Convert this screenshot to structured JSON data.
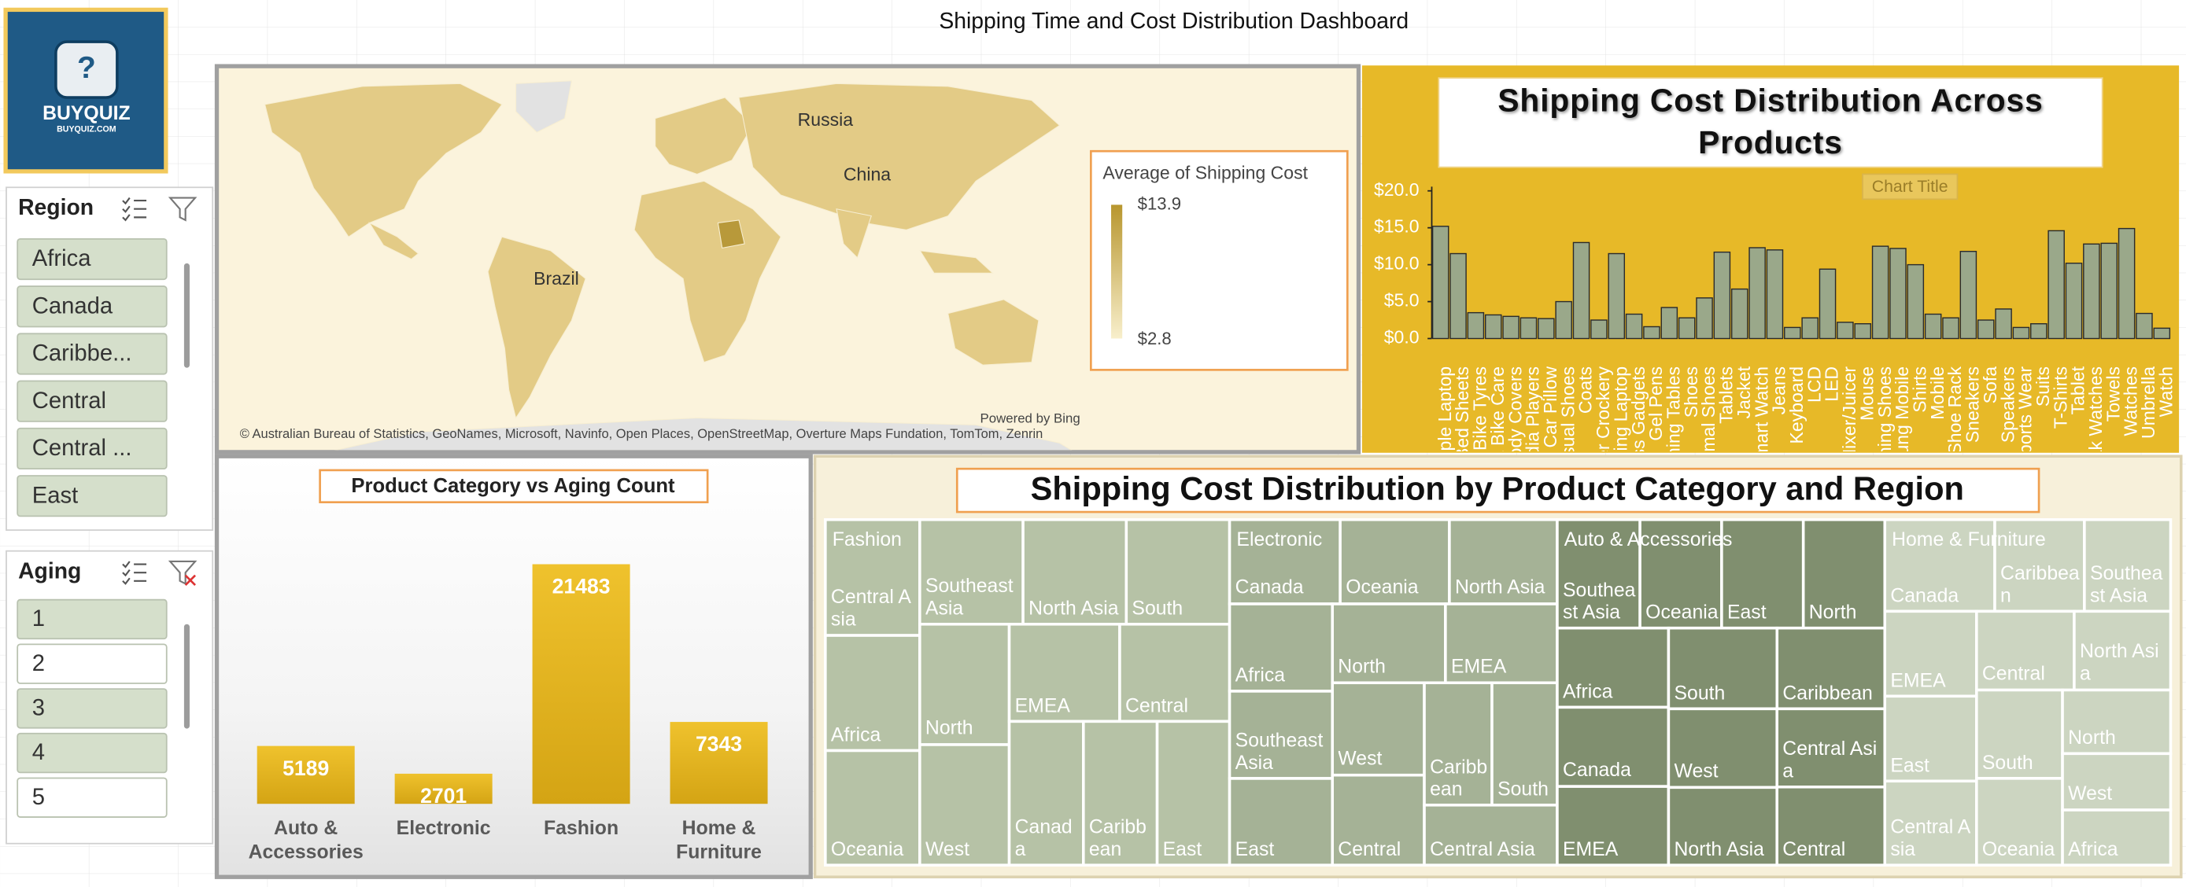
{
  "header": {
    "title": "Shipping Time and Cost Distribution Dashboard"
  },
  "logo": {
    "name": "BUYQUIZ",
    "site": "BUYQUIZ.COM"
  },
  "slicers": [
    {
      "title": "Region",
      "items": [
        "Africa",
        "Canada",
        "Caribbe...",
        "Central",
        "Central ...",
        "East"
      ],
      "selected": [
        true,
        true,
        true,
        true,
        true,
        true
      ]
    },
    {
      "title": "Aging",
      "items": [
        "1",
        "2",
        "3",
        "4",
        "5"
      ],
      "selected": [
        true,
        false,
        true,
        true,
        false
      ]
    }
  ],
  "map": {
    "labels": [
      "Russia",
      "China",
      "Brazil"
    ],
    "legend_title": "Average of Shipping Cost",
    "legend_labels": [
      "$13.9",
      "$2.8"
    ],
    "powered_by": "Powered by Bing",
    "attribution": "© Australian Bureau of Statistics, GeoNames, Microsoft, Navinfo, Open Places, OpenStreetMap, Overture Maps Fundation, TomTom, Zenrin"
  },
  "chart_data": [
    {
      "type": "bar",
      "title": "Shipping Cost Distribution Across Products",
      "annotation": "Chart Title",
      "color": "#9aa88a",
      "categories": [
        "Apple Laptop",
        "Bed Sheets",
        "Bike Tyres",
        "Car & Bike Care",
        "Car Body Covers",
        "Car Media Players",
        "Car Pillow",
        "Casual Shoes",
        "Coats",
        "Dinner Crockery",
        "Gaming Laptop",
        "Fitness Gadgets",
        "Gel Pens",
        "Dinning Tables",
        "Shoes",
        "Formal Shoes",
        "Tablets",
        "Jacket",
        "Smart Watch",
        "Jeans",
        "Keyboard",
        "LCD",
        "LED",
        "Mixer/Juicer",
        "Mouse",
        "Running Shoes",
        "Samsung Mobile",
        "Shirts",
        "Mobile",
        "Shoe Rack",
        "Sneakers",
        "Sofa",
        "Speakers",
        "Sports Wear",
        "Suits",
        "T-Shirts",
        "Tablet",
        "Titak Watches",
        "Towels",
        "Watches",
        "Umbrella",
        "Watch"
      ],
      "values": [
        15.2,
        11.5,
        3.5,
        3.2,
        3.0,
        2.8,
        2.7,
        5.0,
        13.0,
        2.5,
        11.5,
        3.3,
        1.6,
        4.2,
        2.8,
        5.5,
        11.7,
        6.7,
        12.3,
        12.0,
        1.5,
        2.8,
        9.4,
        2.2,
        2.0,
        12.5,
        12.2,
        10.0,
        3.3,
        2.8,
        11.8,
        2.5,
        4.0,
        1.5,
        2.0,
        14.6,
        10.2,
        12.8,
        12.9,
        14.9,
        3.4,
        1.4
      ],
      "ylim": [
        0,
        20
      ],
      "yticks": [
        {
          "value": 0,
          "label": "$0.0"
        },
        {
          "value": 5,
          "label": "$5.0"
        },
        {
          "value": 10,
          "label": "$10.0"
        },
        {
          "value": 15,
          "label": "$15.0"
        },
        {
          "value": 20,
          "label": "$20.0"
        }
      ]
    },
    {
      "type": "bar",
      "title": "Product Category vs Aging Count",
      "color": "#e0b420",
      "categories": [
        "Auto & Accessories",
        "Electronic",
        "Fashion",
        "Home & Furniture"
      ],
      "values": [
        5189,
        2701,
        21483,
        7343
      ]
    },
    {
      "type": "treemap",
      "title": "Shipping Cost Distribution by Product Category and Region",
      "series": [
        {
          "name": "Fashion",
          "color": "#b6c2a6",
          "categories": [
            "Central Asia",
            "Africa",
            "Oceania",
            "Southeast Asia",
            "North Asia",
            "South",
            "North",
            "West",
            "EMEA",
            "Central",
            "Canada",
            "Caribbean",
            "East"
          ],
          "values": [
            5630,
            5600,
            5570,
            5560,
            5560,
            5560,
            5550,
            5550,
            5530,
            5500,
            5490,
            5460,
            5360
          ]
        },
        {
          "name": "Electronic",
          "color": "#a5b296",
          "categories": [
            "Canada",
            "Oceania",
            "North Asia",
            "Africa",
            "Southeast Asia",
            "East",
            "North",
            "EMEA",
            "West",
            "Central",
            "Caribbean",
            "South",
            "Central Asia"
          ],
          "values": [
            4800,
            4740,
            4680,
            4620,
            4620,
            4590,
            4590,
            4540,
            4370,
            4260,
            4260,
            4110,
            4110
          ]
        },
        {
          "name": "Auto & Accessories",
          "color": "#808f6f",
          "categories": [
            "Southeast Asia",
            "Oceania",
            "East",
            "North",
            "Africa",
            "Canada",
            "EMEA",
            "South",
            "Caribbean",
            "West",
            "North Asia",
            "Central Asia",
            "Central"
          ],
          "values": [
            4620,
            4560,
            4560,
            4550,
            4540,
            4540,
            4510,
            4510,
            4480,
            4390,
            4340,
            4340,
            4340
          ]
        },
        {
          "name": "Home & Furniture",
          "color": "#ccd5c1",
          "categories": [
            "Canada",
            "Caribbean",
            "Southeast Asia",
            "EMEA",
            "East",
            "Central Asia",
            "Central",
            "North Asia",
            "South",
            "Oceania",
            "North",
            "West",
            "Africa"
          ],
          "values": [
            5190,
            4230,
            4070,
            4010,
            4010,
            3970,
            3960,
            3910,
            3910,
            3840,
            3540,
            3140,
            3070
          ]
        }
      ]
    }
  ]
}
